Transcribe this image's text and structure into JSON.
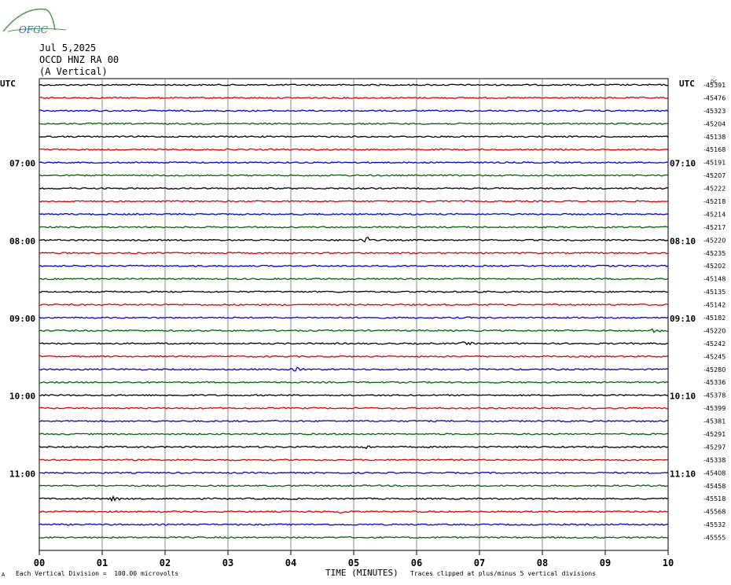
{
  "header": {
    "date": "Jul 5,2025",
    "station": "OCCD HNZ RA 00",
    "component": "(A Vertical)",
    "utc_left": "UTC",
    "utc_right": "UTC"
  },
  "logo": {
    "text": "OFGC",
    "colors": {
      "swoosh": "#4a9a4a",
      "text": "#2d6fb0"
    }
  },
  "footer": {
    "scale_note": "Each Vertical Division =  100.00 microvolts",
    "x_title": "TIME (MINUTES)",
    "clip_note": "Traces clipped at plus/minus 5 vertical divisions",
    "corner_mark": "A"
  },
  "chart_data": {
    "type": "line",
    "x_axis": {
      "label": "TIME (MINUTES)",
      "range": [
        0,
        10
      ],
      "ticks": [
        "00",
        "01",
        "02",
        "03",
        "04",
        "05",
        "06",
        "07",
        "08",
        "09",
        "10"
      ]
    },
    "dc_label": "DC",
    "trace_colors": [
      "#000000",
      "#dd0000",
      "#0000dd",
      "#006600"
    ],
    "traces": [
      {
        "left": "",
        "right": "",
        "dc": "-45391"
      },
      {
        "left": "",
        "right": "",
        "dc": "-45476"
      },
      {
        "left": "",
        "right": "",
        "dc": "-45323"
      },
      {
        "left": "",
        "right": "",
        "dc": "-45204"
      },
      {
        "left": "",
        "right": "",
        "dc": "-45138"
      },
      {
        "left": "",
        "right": "",
        "dc": "-45168"
      },
      {
        "left": "07:00",
        "right": "07:10",
        "dc": "-45191"
      },
      {
        "left": "",
        "right": "",
        "dc": "-45207"
      },
      {
        "left": "",
        "right": "",
        "dc": "-45222"
      },
      {
        "left": "",
        "right": "",
        "dc": "-45218"
      },
      {
        "left": "",
        "right": "",
        "dc": "-45214"
      },
      {
        "left": "",
        "right": "",
        "dc": "-45217"
      },
      {
        "left": "08:00",
        "right": "08:10",
        "dc": "-45220"
      },
      {
        "left": "",
        "right": "",
        "dc": "-45235"
      },
      {
        "left": "",
        "right": "",
        "dc": "-45202"
      },
      {
        "left": "",
        "right": "",
        "dc": "-45148"
      },
      {
        "left": "",
        "right": "",
        "dc": "-45135"
      },
      {
        "left": "",
        "right": "",
        "dc": "-45142"
      },
      {
        "left": "09:00",
        "right": "09:10",
        "dc": "-45182"
      },
      {
        "left": "",
        "right": "",
        "dc": "-45220"
      },
      {
        "left": "",
        "right": "",
        "dc": "-45242"
      },
      {
        "left": "",
        "right": "",
        "dc": "-45245"
      },
      {
        "left": "",
        "right": "",
        "dc": "-45280"
      },
      {
        "left": "",
        "right": "",
        "dc": "-45336"
      },
      {
        "left": "10:00",
        "right": "10:10",
        "dc": "-45378"
      },
      {
        "left": "",
        "right": "",
        "dc": "-45399"
      },
      {
        "left": "",
        "right": "",
        "dc": "-45381"
      },
      {
        "left": "",
        "right": "",
        "dc": "-45291"
      },
      {
        "left": "",
        "right": "",
        "dc": "-45297"
      },
      {
        "left": "",
        "right": "",
        "dc": "-45338"
      },
      {
        "left": "11:00",
        "right": "11:10",
        "dc": "-45408"
      },
      {
        "left": "",
        "right": "",
        "dc": "-45458"
      },
      {
        "left": "",
        "right": "",
        "dc": "-45518"
      },
      {
        "left": "",
        "right": "",
        "dc": "-45568"
      },
      {
        "left": "",
        "right": "",
        "dc": "-45532"
      },
      {
        "left": "",
        "right": "",
        "dc": "-45555"
      }
    ],
    "events": [
      {
        "trace": 12,
        "minute": 5.2,
        "amp": 4
      },
      {
        "trace": 19,
        "minute": 9.8,
        "amp": 3
      },
      {
        "trace": 20,
        "minute": 6.8,
        "amp": 2
      },
      {
        "trace": 22,
        "minute": 4.1,
        "amp": 2
      },
      {
        "trace": 28,
        "minute": 5.2,
        "amp": 2
      },
      {
        "trace": 32,
        "minute": 1.2,
        "amp": 3
      },
      {
        "trace": 33,
        "minute": 4.8,
        "amp": 2
      }
    ]
  }
}
